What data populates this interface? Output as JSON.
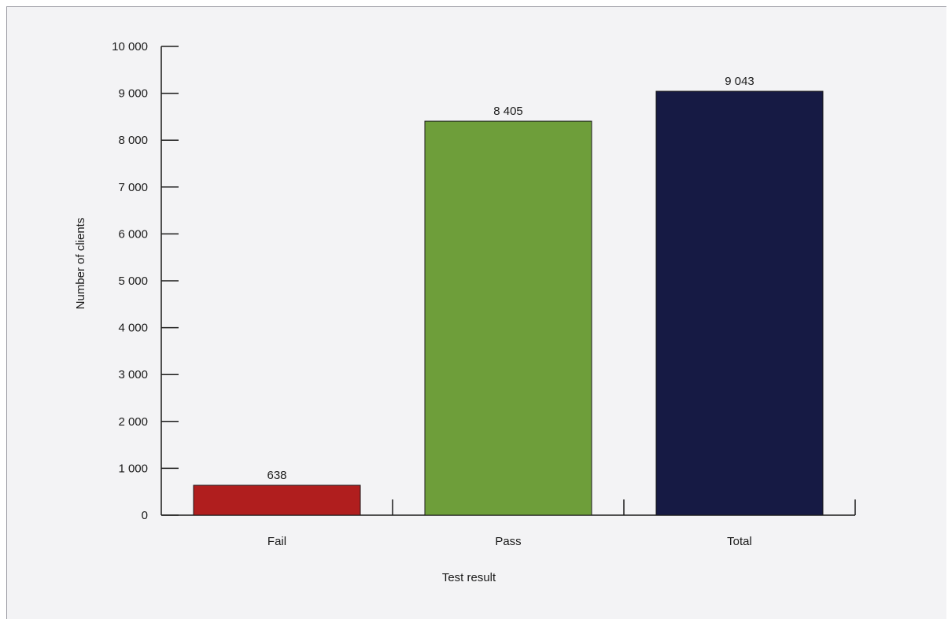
{
  "chart_data": {
    "type": "bar",
    "categories": [
      "Fail",
      "Pass",
      "Total"
    ],
    "values": [
      638,
      8405,
      9043
    ],
    "value_labels": [
      "638",
      "8 405",
      "9 043"
    ],
    "colors": [
      "#b01e1e",
      "#6e9e3a",
      "#161a44"
    ],
    "xlabel": "Test result",
    "ylabel": "Number of clients",
    "ylim": [
      0,
      10000
    ],
    "yticks": [
      0,
      1000,
      2000,
      3000,
      4000,
      5000,
      6000,
      7000,
      8000,
      9000,
      10000
    ],
    "ytick_labels": [
      "0",
      "1 000",
      "2 000",
      "3 000",
      "4 000",
      "5 000",
      "6 000",
      "7 000",
      "8 000",
      "9 000",
      "10 000"
    ],
    "grid": false,
    "legend": "none"
  }
}
